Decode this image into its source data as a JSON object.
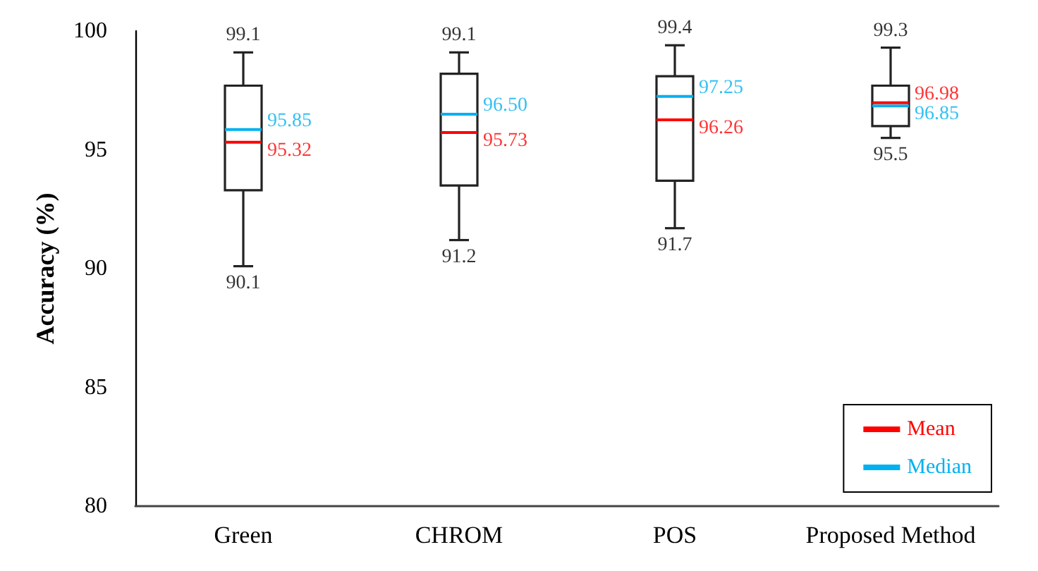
{
  "chart_data": {
    "type": "box",
    "ylabel": "Accuracy (%)",
    "categories": [
      "Green",
      "CHROM",
      "POS",
      "Proposed Method"
    ],
    "series": [
      {
        "color": "#222222",
        "boxes": [
          {
            "low": 90.1,
            "q1": 93.3,
            "median": 95.85,
            "q3": 97.7,
            "high": 99.1,
            "mean": 95.32
          },
          {
            "low": 91.2,
            "q1": 93.5,
            "median": 96.5,
            "q3": 98.2,
            "high": 99.1,
            "mean": 95.73
          },
          {
            "low": 91.7,
            "q1": 93.7,
            "median": 97.25,
            "q3": 98.1,
            "high": 99.4,
            "mean": 96.26
          },
          {
            "low": 95.5,
            "q1": 96.0,
            "median": 96.85,
            "q3": 97.7,
            "high": 99.3,
            "mean": 96.98
          }
        ]
      },
      {
        "name": "Mean",
        "color": "#ff0000",
        "values": [
          null,
          null,
          null,
          null
        ]
      },
      {
        "name": "Median",
        "color": "#00b0f0",
        "values": [
          null,
          null,
          null,
          null
        ]
      }
    ],
    "annotations": [
      {
        "text": "99.1",
        "x": "Green",
        "y": 99.1
      },
      {
        "text": "90.1",
        "x": "Green",
        "y": 90.1
      },
      {
        "text": "95.85",
        "x": "Green",
        "y": 95.85
      },
      {
        "text": "95.32",
        "x": "Green",
        "y": 95.32
      },
      {
        "text": "99.1",
        "x": "CHROM",
        "y": 99.1
      },
      {
        "text": "91.2",
        "x": "CHROM",
        "y": 91.2
      },
      {
        "text": "96.50",
        "x": "CHROM",
        "y": 96.5
      },
      {
        "text": "95.73",
        "x": "CHROM",
        "y": 95.73
      },
      {
        "text": "99.4",
        "x": "POS",
        "y": 99.4
      },
      {
        "text": "91.7",
        "x": "POS",
        "y": 91.7
      },
      {
        "text": "97.25",
        "x": "POS",
        "y": 97.25
      },
      {
        "text": "96.26",
        "x": "POS",
        "y": 96.26
      },
      {
        "text": "99.3",
        "x": "Proposed Method",
        "y": 99.3
      },
      {
        "text": "95.5",
        "x": "Proposed Method",
        "y": 95.5
      },
      {
        "text": "96.98",
        "x": "Proposed Method",
        "y": 96.98
      },
      {
        "text": "96.85",
        "x": "Proposed Method",
        "y": 96.85
      }
    ],
    "ylim": [
      80,
      100
    ],
    "yticks": [
      80,
      85,
      90,
      95,
      100
    ],
    "grid": false,
    "legend": "bottom right"
  }
}
